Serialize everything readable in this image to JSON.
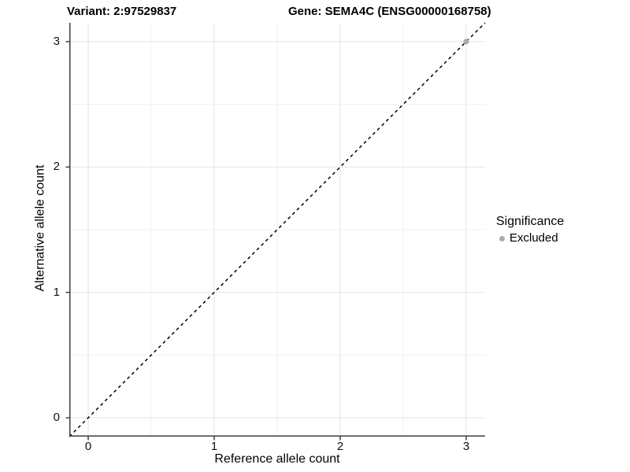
{
  "colors": {
    "background": "#ffffff",
    "grid_major": "#e3e3e3",
    "grid_minor": "#f0f0f0",
    "axis_line": "#3f3f3f",
    "identity_line": "#000000",
    "excluded_point": "#ababab",
    "text": "#000000"
  },
  "chart_data": {
    "type": "scatter",
    "title_left": "Variant: 2:97529837",
    "title_right": "Gene: SEMA4C (ENSG00000168758)",
    "xlabel": "Reference allele count",
    "ylabel": "Alternative allele count",
    "xlim": [
      -0.15,
      3.15
    ],
    "ylim": [
      -0.15,
      3.15
    ],
    "x_ticks": [
      0,
      1,
      2,
      3
    ],
    "y_ticks": [
      0,
      1,
      2,
      3
    ],
    "x_minor_gridlines": [
      0.5,
      1.5,
      2.5
    ],
    "y_minor_gridlines": [
      0.5,
      1.5,
      2.5
    ],
    "grid": true,
    "identity_line": {
      "slope": 1,
      "intercept": 0,
      "style": "dashed",
      "color": "#000000"
    },
    "legend": {
      "title": "Significance",
      "position": "right",
      "items": [
        {
          "label": "Excluded",
          "color": "#ababab"
        }
      ]
    },
    "series": [
      {
        "name": "Excluded",
        "color": "#ababab",
        "points": [
          {
            "x": 3,
            "y": 3
          }
        ]
      }
    ]
  }
}
